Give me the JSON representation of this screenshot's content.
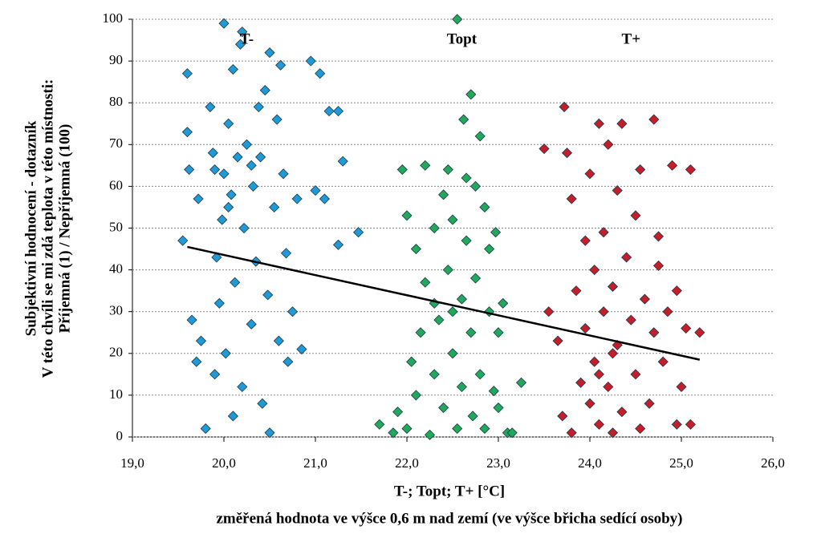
{
  "chart_data": {
    "type": "scatter",
    "y_label": [
      "Subjektivní hodnocení - dotazník",
      "V této chvíli se mi zdá teplota v této místnosti:",
      "Příjemná (1) / Nepříjemná (100)"
    ],
    "x_label": [
      "T-; Topt; T+ [°C]",
      "změřená hodnota ve výšce 0,6 m nad zemí (ve výšce břicha sedící osoby)"
    ],
    "xlim": [
      19,
      26
    ],
    "xticks": [
      {
        "value": 19,
        "label": "19,0"
      },
      {
        "value": 20,
        "label": "20,0"
      },
      {
        "value": 21,
        "label": "21,0"
      },
      {
        "value": 22,
        "label": "22,0"
      },
      {
        "value": 23,
        "label": "23,0"
      },
      {
        "value": 24,
        "label": "24,0"
      },
      {
        "value": 25,
        "label": "25,0"
      },
      {
        "value": 26,
        "label": "26,0"
      }
    ],
    "ylim": [
      0,
      100
    ],
    "yticks": [
      0,
      10,
      20,
      30,
      40,
      50,
      60,
      70,
      80,
      90,
      100
    ],
    "grid": true,
    "series": [
      {
        "name": "T-",
        "color": "#1f9ad6",
        "label_at": [
          20.25,
          95
        ],
        "x": [
          19.55,
          19.6,
          19.6,
          19.62,
          19.65,
          19.7,
          19.72,
          19.75,
          19.8,
          19.85,
          19.88,
          19.9,
          19.92,
          19.95,
          19.98,
          20.0,
          20.0,
          20.02,
          20.05,
          20.08,
          20.1,
          20.1,
          20.12,
          20.15,
          20.18,
          20.2,
          20.2,
          20.22,
          20.25,
          20.3,
          20.32,
          20.35,
          20.38,
          20.4,
          20.42,
          20.45,
          20.48,
          20.5,
          20.5,
          20.55,
          20.58,
          20.6,
          20.62,
          20.65,
          20.68,
          20.7,
          20.75,
          20.8,
          20.85,
          20.95,
          21.0,
          21.05,
          21.1,
          21.15,
          21.25,
          21.25,
          21.3,
          21.47,
          20.3,
          19.9,
          20.05
        ],
        "values": [
          47,
          87,
          73,
          64,
          28,
          18,
          57,
          23,
          2,
          79,
          68,
          15,
          43,
          32,
          52,
          99,
          63,
          20,
          75,
          58,
          5,
          88,
          37,
          67,
          94,
          97,
          12,
          50,
          70,
          27,
          60,
          42,
          79,
          67,
          8,
          83,
          34,
          92,
          1,
          55,
          76,
          23,
          89,
          63,
          44,
          18,
          30,
          57,
          21,
          90,
          59,
          87,
          57,
          78,
          78,
          46,
          66,
          49,
          65,
          64,
          55
        ]
      },
      {
        "name": "Topt",
        "color": "#22a85a",
        "label_at": [
          22.6,
          95
        ],
        "x": [
          21.7,
          21.85,
          21.9,
          21.95,
          22.0,
          22.0,
          22.05,
          22.1,
          22.1,
          22.15,
          22.2,
          22.2,
          22.25,
          22.3,
          22.3,
          22.35,
          22.4,
          22.4,
          22.45,
          22.45,
          22.5,
          22.5,
          22.55,
          22.55,
          22.6,
          22.6,
          22.62,
          22.65,
          22.7,
          22.7,
          22.72,
          22.75,
          22.75,
          22.8,
          22.8,
          22.85,
          22.85,
          22.9,
          22.9,
          22.95,
          22.97,
          23.0,
          23.0,
          23.05,
          23.1,
          23.15,
          23.25,
          22.3,
          22.5,
          22.65
        ],
        "values": [
          3,
          1,
          6,
          64,
          2,
          53,
          18,
          45,
          10,
          25,
          65,
          37,
          0.5,
          50,
          15,
          28,
          58,
          7,
          64,
          40,
          20,
          52,
          2,
          100,
          33,
          12,
          76,
          47,
          82,
          25,
          5,
          60,
          38,
          72,
          15,
          55,
          2,
          30,
          45,
          11,
          49,
          25,
          7,
          32,
          1,
          1,
          13,
          32,
          30,
          62
        ]
      },
      {
        "name": "T+",
        "color": "#c41e2a",
        "label_at": [
          24.45,
          95
        ],
        "x": [
          23.5,
          23.55,
          23.65,
          23.7,
          23.72,
          23.75,
          23.8,
          23.8,
          23.85,
          23.9,
          23.95,
          23.95,
          24.0,
          24.0,
          24.05,
          24.05,
          24.1,
          24.1,
          24.15,
          24.15,
          24.2,
          24.2,
          24.25,
          24.25,
          24.3,
          24.3,
          24.35,
          24.35,
          24.4,
          24.45,
          24.5,
          24.5,
          24.55,
          24.55,
          24.6,
          24.65,
          24.7,
          24.7,
          24.75,
          24.75,
          24.8,
          24.85,
          24.9,
          24.95,
          24.95,
          25.0,
          25.05,
          25.1,
          25.1,
          25.2,
          24.25,
          24.1
        ],
        "values": [
          69,
          30,
          23,
          5,
          79,
          68,
          57,
          1,
          35,
          13,
          47,
          26,
          63,
          8,
          40,
          18,
          75,
          3,
          49,
          30,
          70,
          12,
          36,
          1,
          59,
          22,
          75,
          6,
          43,
          28,
          53,
          15,
          2,
          64,
          33,
          8,
          76,
          25,
          48,
          41,
          18,
          30,
          65,
          35,
          3,
          12,
          26,
          3,
          64,
          25,
          20,
          15
        ]
      }
    ],
    "trendline": {
      "x": [
        19.6,
        25.2
      ],
      "y": [
        45.5,
        18.5
      ]
    }
  }
}
